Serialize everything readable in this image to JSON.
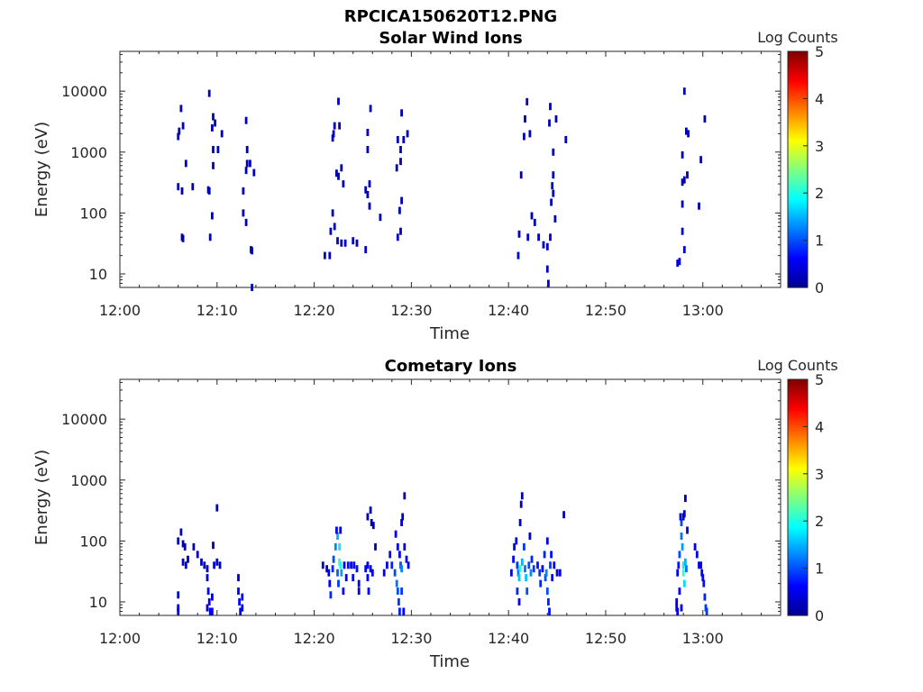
{
  "figure_title": "RPCICA150620T12.PNG",
  "colors": {
    "axis": "#262626",
    "colormap": [
      "#00008f",
      "#0000ff",
      "#0080ff",
      "#00ffff",
      "#80ff80",
      "#ffff00",
      "#ff8000",
      "#ff0000",
      "#800000"
    ]
  },
  "chart_data": [
    {
      "type": "heatmap",
      "title": "Solar Wind Ions",
      "xlabel": "Time",
      "ylabel": "Energy (eV)",
      "colorbar_label": "Log Counts",
      "x_range_min": [
        0,
        68
      ],
      "y_range_ev": [
        6,
        45000
      ],
      "y_scale": "log",
      "x_ticks": [
        "12:00",
        "12:10",
        "12:20",
        "12:30",
        "12:40",
        "12:50",
        "13:00"
      ],
      "y_ticks": [
        "10",
        "100",
        "1000",
        "10000"
      ],
      "colorbar_ticks": [
        "0",
        "1",
        "2",
        "3",
        "4",
        "5"
      ],
      "color_range": [
        0,
        5
      ],
      "points": [
        [
          6.0,
          1800,
          0.2
        ],
        [
          6.1,
          2200,
          0.2
        ],
        [
          6.3,
          5200,
          0.2
        ],
        [
          6.5,
          2700,
          0.2
        ],
        [
          6.8,
          650,
          0.2
        ],
        [
          7.5,
          270,
          0.2
        ],
        [
          6.0,
          270,
          0.2
        ],
        [
          6.4,
          230,
          0.2
        ],
        [
          6.4,
          40,
          0.2
        ],
        [
          6.5,
          38,
          0.2
        ],
        [
          9.2,
          9200,
          0.2
        ],
        [
          9.6,
          3800,
          0.2
        ],
        [
          9.5,
          2500,
          0.2
        ],
        [
          9.8,
          3000,
          0.2
        ],
        [
          9.6,
          1100,
          0.2
        ],
        [
          10.1,
          1100,
          0.2
        ],
        [
          10.5,
          2000,
          0.2
        ],
        [
          9.6,
          600,
          0.2
        ],
        [
          9.1,
          240,
          0.2
        ],
        [
          9.2,
          230,
          0.2
        ],
        [
          9.5,
          90,
          0.2
        ],
        [
          9.3,
          40,
          0.2
        ],
        [
          13.0,
          3300,
          0.2
        ],
        [
          13.1,
          1100,
          0.2
        ],
        [
          13.1,
          650,
          0.2
        ],
        [
          13.4,
          650,
          0.2
        ],
        [
          13.0,
          500,
          0.2
        ],
        [
          13.8,
          460,
          0.2
        ],
        [
          12.7,
          230,
          0.2
        ],
        [
          12.7,
          100,
          0.2
        ],
        [
          13.0,
          70,
          0.2
        ],
        [
          13.5,
          25,
          0.2
        ],
        [
          13.6,
          24,
          0.2
        ],
        [
          13.6,
          6,
          0.2
        ],
        [
          22.5,
          6800,
          0.2
        ],
        [
          22.1,
          2700,
          0.2
        ],
        [
          22.6,
          2700,
          0.2
        ],
        [
          22.0,
          2000,
          0.2
        ],
        [
          21.9,
          1700,
          0.2
        ],
        [
          22.3,
          450,
          0.2
        ],
        [
          22.5,
          400,
          0.2
        ],
        [
          22.8,
          550,
          0.2
        ],
        [
          23.0,
          300,
          0.2
        ],
        [
          21.9,
          100,
          0.2
        ],
        [
          21.7,
          50,
          0.3
        ],
        [
          22.1,
          60,
          0.3
        ],
        [
          22.4,
          35,
          0.3
        ],
        [
          22.8,
          32,
          0.3
        ],
        [
          23.2,
          32,
          0.3
        ],
        [
          24.0,
          35,
          0.3
        ],
        [
          24.4,
          32,
          0.3
        ],
        [
          21.1,
          20,
          0.3
        ],
        [
          21.6,
          20,
          0.3
        ],
        [
          25.8,
          5200,
          0.2
        ],
        [
          25.5,
          2100,
          0.2
        ],
        [
          25.5,
          1100,
          0.2
        ],
        [
          25.7,
          300,
          0.2
        ],
        [
          25.3,
          240,
          0.2
        ],
        [
          25.5,
          200,
          0.2
        ],
        [
          25.7,
          130,
          0.2
        ],
        [
          26.8,
          85,
          0.2
        ],
        [
          25.3,
          25,
          0.3
        ],
        [
          29.0,
          4400,
          0.2
        ],
        [
          28.6,
          1600,
          0.2
        ],
        [
          28.9,
          1100,
          0.2
        ],
        [
          29.2,
          1600,
          0.2
        ],
        [
          29.6,
          2000,
          0.2
        ],
        [
          28.5,
          550,
          0.2
        ],
        [
          28.9,
          700,
          0.2
        ],
        [
          29.0,
          160,
          0.2
        ],
        [
          28.8,
          110,
          0.2
        ],
        [
          28.6,
          40,
          0.3
        ],
        [
          28.9,
          50,
          0.3
        ],
        [
          41.9,
          6700,
          0.2
        ],
        [
          41.7,
          3500,
          0.2
        ],
        [
          41.6,
          1800,
          0.2
        ],
        [
          42.2,
          2000,
          0.2
        ],
        [
          41.3,
          420,
          0.2
        ],
        [
          42.4,
          90,
          0.2
        ],
        [
          42.7,
          70,
          0.2
        ],
        [
          41.1,
          45,
          0.3
        ],
        [
          41.0,
          20,
          0.3
        ],
        [
          42.0,
          40,
          0.3
        ],
        [
          43.1,
          40,
          0.3
        ],
        [
          43.6,
          30,
          0.3
        ],
        [
          44.0,
          28,
          0.3
        ],
        [
          44.3,
          40,
          0.3
        ],
        [
          44.0,
          12,
          0.3
        ],
        [
          44.1,
          7,
          0.4
        ],
        [
          44.3,
          5600,
          0.2
        ],
        [
          44.9,
          3500,
          0.2
        ],
        [
          44.2,
          3000,
          0.2
        ],
        [
          44.6,
          1000,
          0.2
        ],
        [
          44.6,
          420,
          0.2
        ],
        [
          44.5,
          280,
          0.2
        ],
        [
          44.6,
          210,
          0.2
        ],
        [
          44.4,
          150,
          0.2
        ],
        [
          44.8,
          80,
          0.2
        ],
        [
          45.9,
          1600,
          0.2
        ],
        [
          58.1,
          10000,
          0.2
        ],
        [
          58.3,
          2200,
          0.2
        ],
        [
          58.5,
          2000,
          0.2
        ],
        [
          57.9,
          900,
          0.2
        ],
        [
          58.1,
          350,
          0.2
        ],
        [
          58.4,
          420,
          0.2
        ],
        [
          57.9,
          320,
          0.2
        ],
        [
          57.9,
          140,
          0.2
        ],
        [
          57.9,
          50,
          0.3
        ],
        [
          58.1,
          25,
          0.3
        ],
        [
          57.4,
          15,
          0.4
        ],
        [
          57.6,
          16,
          0.4
        ],
        [
          59.6,
          130,
          0.2
        ],
        [
          60.2,
          3500,
          0.2
        ],
        [
          59.8,
          750,
          0.2
        ]
      ]
    },
    {
      "type": "heatmap",
      "title": "Cometary Ions",
      "xlabel": "Time",
      "ylabel": "Energy (eV)",
      "colorbar_label": "Log Counts",
      "x_range_min": [
        0,
        68
      ],
      "y_range_ev": [
        6,
        45000
      ],
      "y_scale": "log",
      "x_ticks": [
        "12:00",
        "12:10",
        "12:20",
        "12:30",
        "12:40",
        "12:50",
        "13:00"
      ],
      "y_ticks": [
        "10",
        "100",
        "1000",
        "10000"
      ],
      "colorbar_ticks": [
        "0",
        "1",
        "2",
        "3",
        "4",
        "5"
      ],
      "color_range": [
        0,
        5
      ],
      "points": [
        [
          6.0,
          13,
          0.3
        ],
        [
          6.0,
          8,
          0.3
        ],
        [
          6.0,
          7,
          0.3
        ],
        [
          6.0,
          100,
          0.2
        ],
        [
          6.3,
          140,
          0.2
        ],
        [
          6.5,
          90,
          0.2
        ],
        [
          6.7,
          80,
          0.2
        ],
        [
          6.5,
          45,
          0.2
        ],
        [
          7.0,
          50,
          0.2
        ],
        [
          6.8,
          40,
          0.3
        ],
        [
          7.6,
          80,
          0.2
        ],
        [
          8.0,
          60,
          0.2
        ],
        [
          8.4,
          45,
          0.2
        ],
        [
          8.7,
          40,
          0.3
        ],
        [
          9.0,
          25,
          0.4
        ],
        [
          9.1,
          15,
          0.5
        ],
        [
          9.2,
          10,
          0.6
        ],
        [
          9.3,
          7,
          0.6
        ],
        [
          9.0,
          8,
          0.5
        ],
        [
          9.5,
          12,
          0.4
        ],
        [
          9.5,
          7,
          0.5
        ],
        [
          9.0,
          35,
          0.3
        ],
        [
          9.6,
          85,
          0.2
        ],
        [
          9.7,
          40,
          0.4
        ],
        [
          10.0,
          45,
          0.3
        ],
        [
          10.3,
          40,
          0.3
        ],
        [
          10.0,
          350,
          0.2
        ],
        [
          12.2,
          25,
          0.3
        ],
        [
          12.2,
          15,
          0.5
        ],
        [
          12.3,
          10,
          0.6
        ],
        [
          12.4,
          7,
          0.6
        ],
        [
          12.6,
          12,
          0.5
        ],
        [
          12.6,
          8,
          0.5
        ],
        [
          20.9,
          40,
          0.3
        ],
        [
          21.3,
          35,
          0.4
        ],
        [
          21.5,
          30,
          0.5
        ],
        [
          21.6,
          20,
          0.6
        ],
        [
          21.7,
          13,
          0.8
        ],
        [
          21.9,
          35,
          0.8
        ],
        [
          22.0,
          50,
          1.0
        ],
        [
          22.2,
          80,
          1.3
        ],
        [
          22.4,
          120,
          1.5
        ],
        [
          22.6,
          80,
          1.8
        ],
        [
          22.6,
          45,
          2.1
        ],
        [
          22.7,
          40,
          2.0
        ],
        [
          22.8,
          30,
          1.4
        ],
        [
          22.4,
          30,
          1.1
        ],
        [
          22.5,
          20,
          0.9
        ],
        [
          22.3,
          150,
          0.6
        ],
        [
          22.7,
          150,
          0.5
        ],
        [
          23.1,
          40,
          0.6
        ],
        [
          23.3,
          25,
          0.5
        ],
        [
          23.0,
          15,
          0.6
        ],
        [
          23.5,
          40,
          0.7
        ],
        [
          23.8,
          40,
          0.6
        ],
        [
          24.1,
          40,
          0.6
        ],
        [
          24.4,
          35,
          0.7
        ],
        [
          24.6,
          20,
          0.6
        ],
        [
          24.0,
          25,
          0.5
        ],
        [
          24.6,
          15,
          0.5
        ],
        [
          25.3,
          35,
          0.6
        ],
        [
          25.5,
          40,
          0.5
        ],
        [
          25.5,
          25,
          0.6
        ],
        [
          25.6,
          15,
          0.6
        ],
        [
          25.8,
          35,
          0.5
        ],
        [
          26.0,
          30,
          0.5
        ],
        [
          25.5,
          250,
          0.2
        ],
        [
          25.8,
          320,
          0.2
        ],
        [
          25.9,
          200,
          0.2
        ],
        [
          26.1,
          180,
          0.2
        ],
        [
          26.3,
          80,
          0.2
        ],
        [
          27.2,
          30,
          0.5
        ],
        [
          27.5,
          40,
          0.5
        ],
        [
          27.8,
          60,
          0.6
        ],
        [
          28.0,
          40,
          0.8
        ],
        [
          28.3,
          30,
          1.0
        ],
        [
          28.5,
          20,
          1.2
        ],
        [
          28.6,
          15,
          1.0
        ],
        [
          28.7,
          10,
          0.9
        ],
        [
          28.8,
          7,
          0.8
        ],
        [
          28.9,
          40,
          1.0
        ],
        [
          29.0,
          35,
          1.3
        ],
        [
          28.4,
          130,
          0.4
        ],
        [
          28.6,
          80,
          0.5
        ],
        [
          28.8,
          60,
          0.6
        ],
        [
          29.0,
          200,
          0.3
        ],
        [
          29.1,
          250,
          0.3
        ],
        [
          29.3,
          80,
          0.5
        ],
        [
          29.5,
          50,
          0.5
        ],
        [
          29.7,
          40,
          0.5
        ],
        [
          29.3,
          550,
          0.2
        ],
        [
          29.0,
          15,
          0.9
        ],
        [
          29.2,
          7,
          0.6
        ],
        [
          40.3,
          30,
          0.5
        ],
        [
          40.5,
          50,
          0.6
        ],
        [
          40.6,
          80,
          0.5
        ],
        [
          40.8,
          100,
          0.5
        ],
        [
          40.9,
          40,
          0.9
        ],
        [
          41.0,
          30,
          1.2
        ],
        [
          41.1,
          25,
          1.6
        ],
        [
          41.2,
          35,
          2.0
        ],
        [
          41.4,
          45,
          1.5
        ],
        [
          41.6,
          80,
          0.9
        ],
        [
          41.7,
          35,
          1.2
        ],
        [
          41.8,
          25,
          1.6
        ],
        [
          41.9,
          15,
          1.0
        ],
        [
          42.1,
          40,
          1.0
        ],
        [
          42.3,
          30,
          1.3
        ],
        [
          42.4,
          50,
          0.8
        ],
        [
          42.6,
          35,
          0.9
        ],
        [
          40.9,
          15,
          0.8
        ],
        [
          41.1,
          10,
          0.6
        ],
        [
          41.2,
          200,
          0.3
        ],
        [
          41.3,
          400,
          0.3
        ],
        [
          41.4,
          550,
          0.2
        ],
        [
          42.2,
          120,
          0.3
        ],
        [
          43.0,
          40,
          0.7
        ],
        [
          43.2,
          30,
          0.9
        ],
        [
          43.3,
          20,
          0.8
        ],
        [
          43.5,
          35,
          0.6
        ],
        [
          43.7,
          60,
          0.8
        ],
        [
          43.8,
          25,
          1.0
        ],
        [
          43.9,
          30,
          1.3
        ],
        [
          44.0,
          15,
          1.0
        ],
        [
          44.1,
          10,
          0.8
        ],
        [
          44.2,
          7,
          0.7
        ],
        [
          44.3,
          40,
          0.9
        ],
        [
          44.4,
          60,
          0.7
        ],
        [
          44.5,
          25,
          0.6
        ],
        [
          44.0,
          100,
          0.4
        ],
        [
          44.7,
          40,
          0.5
        ],
        [
          45.0,
          30,
          0.4
        ],
        [
          45.3,
          30,
          0.5
        ],
        [
          45.7,
          270,
          0.2
        ],
        [
          57.4,
          30,
          0.5
        ],
        [
          57.5,
          40,
          0.7
        ],
        [
          57.6,
          60,
          1.0
        ],
        [
          57.8,
          120,
          1.2
        ],
        [
          57.8,
          200,
          1.0
        ],
        [
          57.9,
          80,
          1.4
        ],
        [
          58.0,
          40,
          1.8
        ],
        [
          58.0,
          30,
          2.1
        ],
        [
          58.1,
          20,
          1.7
        ],
        [
          58.2,
          45,
          1.5
        ],
        [
          58.3,
          35,
          1.2
        ],
        [
          58.4,
          150,
          0.5
        ],
        [
          58.2,
          500,
          0.2
        ],
        [
          57.7,
          250,
          0.4
        ],
        [
          58.1,
          280,
          0.3
        ],
        [
          58.0,
          250,
          0.3
        ],
        [
          57.3,
          10,
          0.5
        ],
        [
          57.3,
          8,
          0.5
        ],
        [
          57.4,
          7,
          0.5
        ],
        [
          57.6,
          15,
          0.6
        ],
        [
          57.8,
          8,
          0.6
        ],
        [
          59.2,
          80,
          0.4
        ],
        [
          59.4,
          60,
          0.5
        ],
        [
          59.6,
          40,
          0.5
        ],
        [
          59.9,
          30,
          0.6
        ],
        [
          60.1,
          20,
          0.7
        ],
        [
          60.2,
          12,
          0.8
        ],
        [
          60.3,
          8,
          0.9
        ],
        [
          60.4,
          7,
          0.9
        ],
        [
          60.0,
          25,
          0.6
        ],
        [
          59.8,
          40,
          0.4
        ]
      ]
    }
  ]
}
